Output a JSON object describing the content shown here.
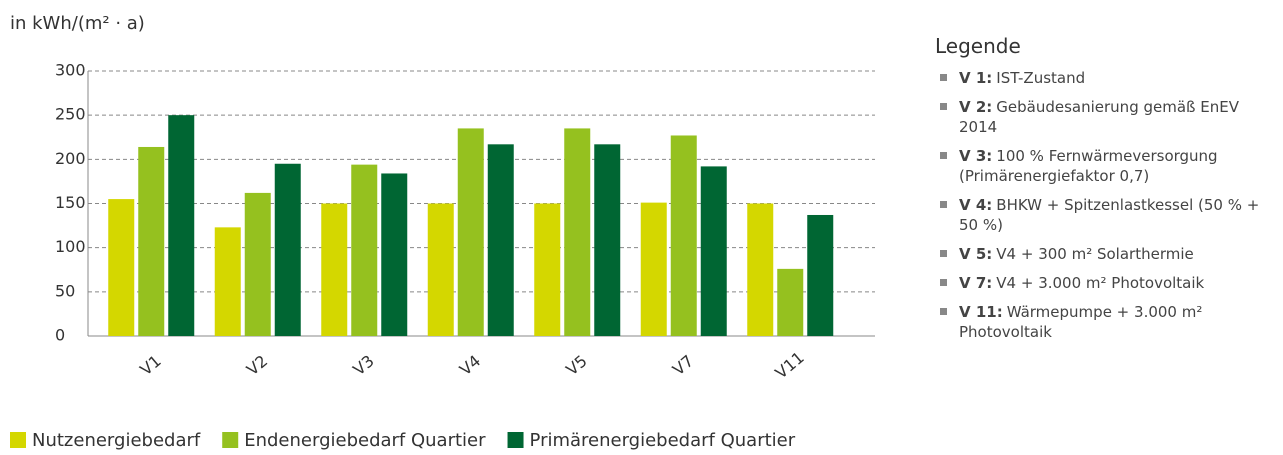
{
  "chart_data": {
    "type": "bar",
    "y_axis_label": "in kWh/(m² · a)",
    "categories": [
      "V1",
      "V2",
      "V3",
      "V4",
      "V5",
      "V7",
      "V11"
    ],
    "series": [
      {
        "name": "Nutzenergiebedarf",
        "color": "#d4d700",
        "values": [
          155,
          123,
          150,
          150,
          150,
          151,
          150
        ]
      },
      {
        "name": "Endenergiebedarf Quartier",
        "color": "#95c11f",
        "values": [
          214,
          162,
          194,
          235,
          235,
          227,
          76
        ]
      },
      {
        "name": "Primärenergiebedarf Quartier",
        "color": "#006633",
        "values": [
          250,
          195,
          184,
          217,
          217,
          192,
          137
        ]
      }
    ],
    "ylim": [
      0,
      300
    ],
    "yticks": [
      0,
      50,
      100,
      150,
      200,
      250,
      300
    ],
    "grid": true,
    "legend": "bottom"
  },
  "legend_panel": {
    "title": "Legende",
    "items": [
      {
        "label": "V 1:",
        "text": "IST-Zustand"
      },
      {
        "label": "V 2:",
        "text": "Gebäudesanierung gemäß EnEV 2014"
      },
      {
        "label": "V 3:",
        "text": "100 % Fernwärmeversorgung (Primärenergiefaktor 0,7)"
      },
      {
        "label": "V 4:",
        "text": "BHKW + Spitzenlastkessel (50 % + 50 %)"
      },
      {
        "label": "V 5:",
        "text": "V4 + 300 m² Solarthermie"
      },
      {
        "label": "V 7:",
        "text": "V4 + 3.000 m² Photovoltaik"
      },
      {
        "label": "V 11:",
        "text": "Wärmepumpe + 3.000 m² Photovoltaik"
      }
    ]
  }
}
